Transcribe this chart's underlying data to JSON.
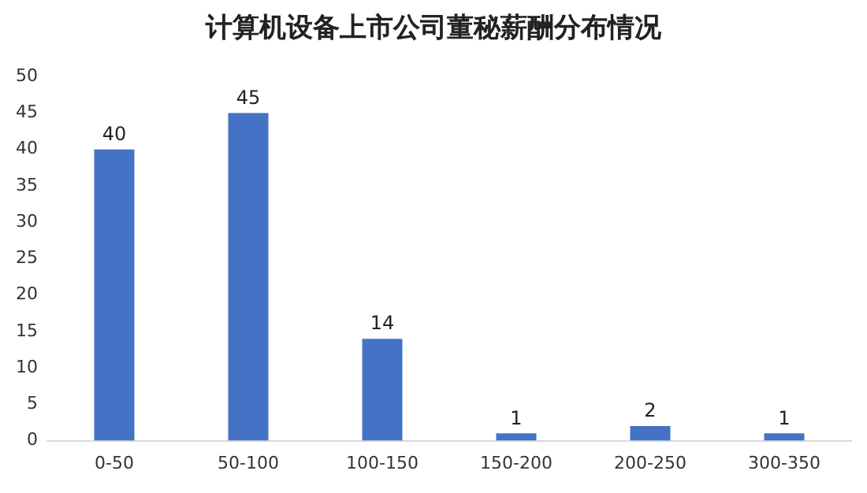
{
  "chart_data": {
    "type": "bar",
    "title": "计算机设备上市公司董秘薪酬分布情况",
    "categories": [
      "0-50",
      "50-100",
      "100-150",
      "150-200",
      "200-250",
      "300-350"
    ],
    "values": [
      40,
      45,
      14,
      1,
      2,
      1
    ],
    "color": "#4472c4",
    "ylim": [
      0,
      50
    ],
    "yticks": [
      0,
      5,
      10,
      15,
      20,
      25,
      30,
      35,
      40,
      45,
      50
    ],
    "grid": false,
    "data_labels": true
  }
}
